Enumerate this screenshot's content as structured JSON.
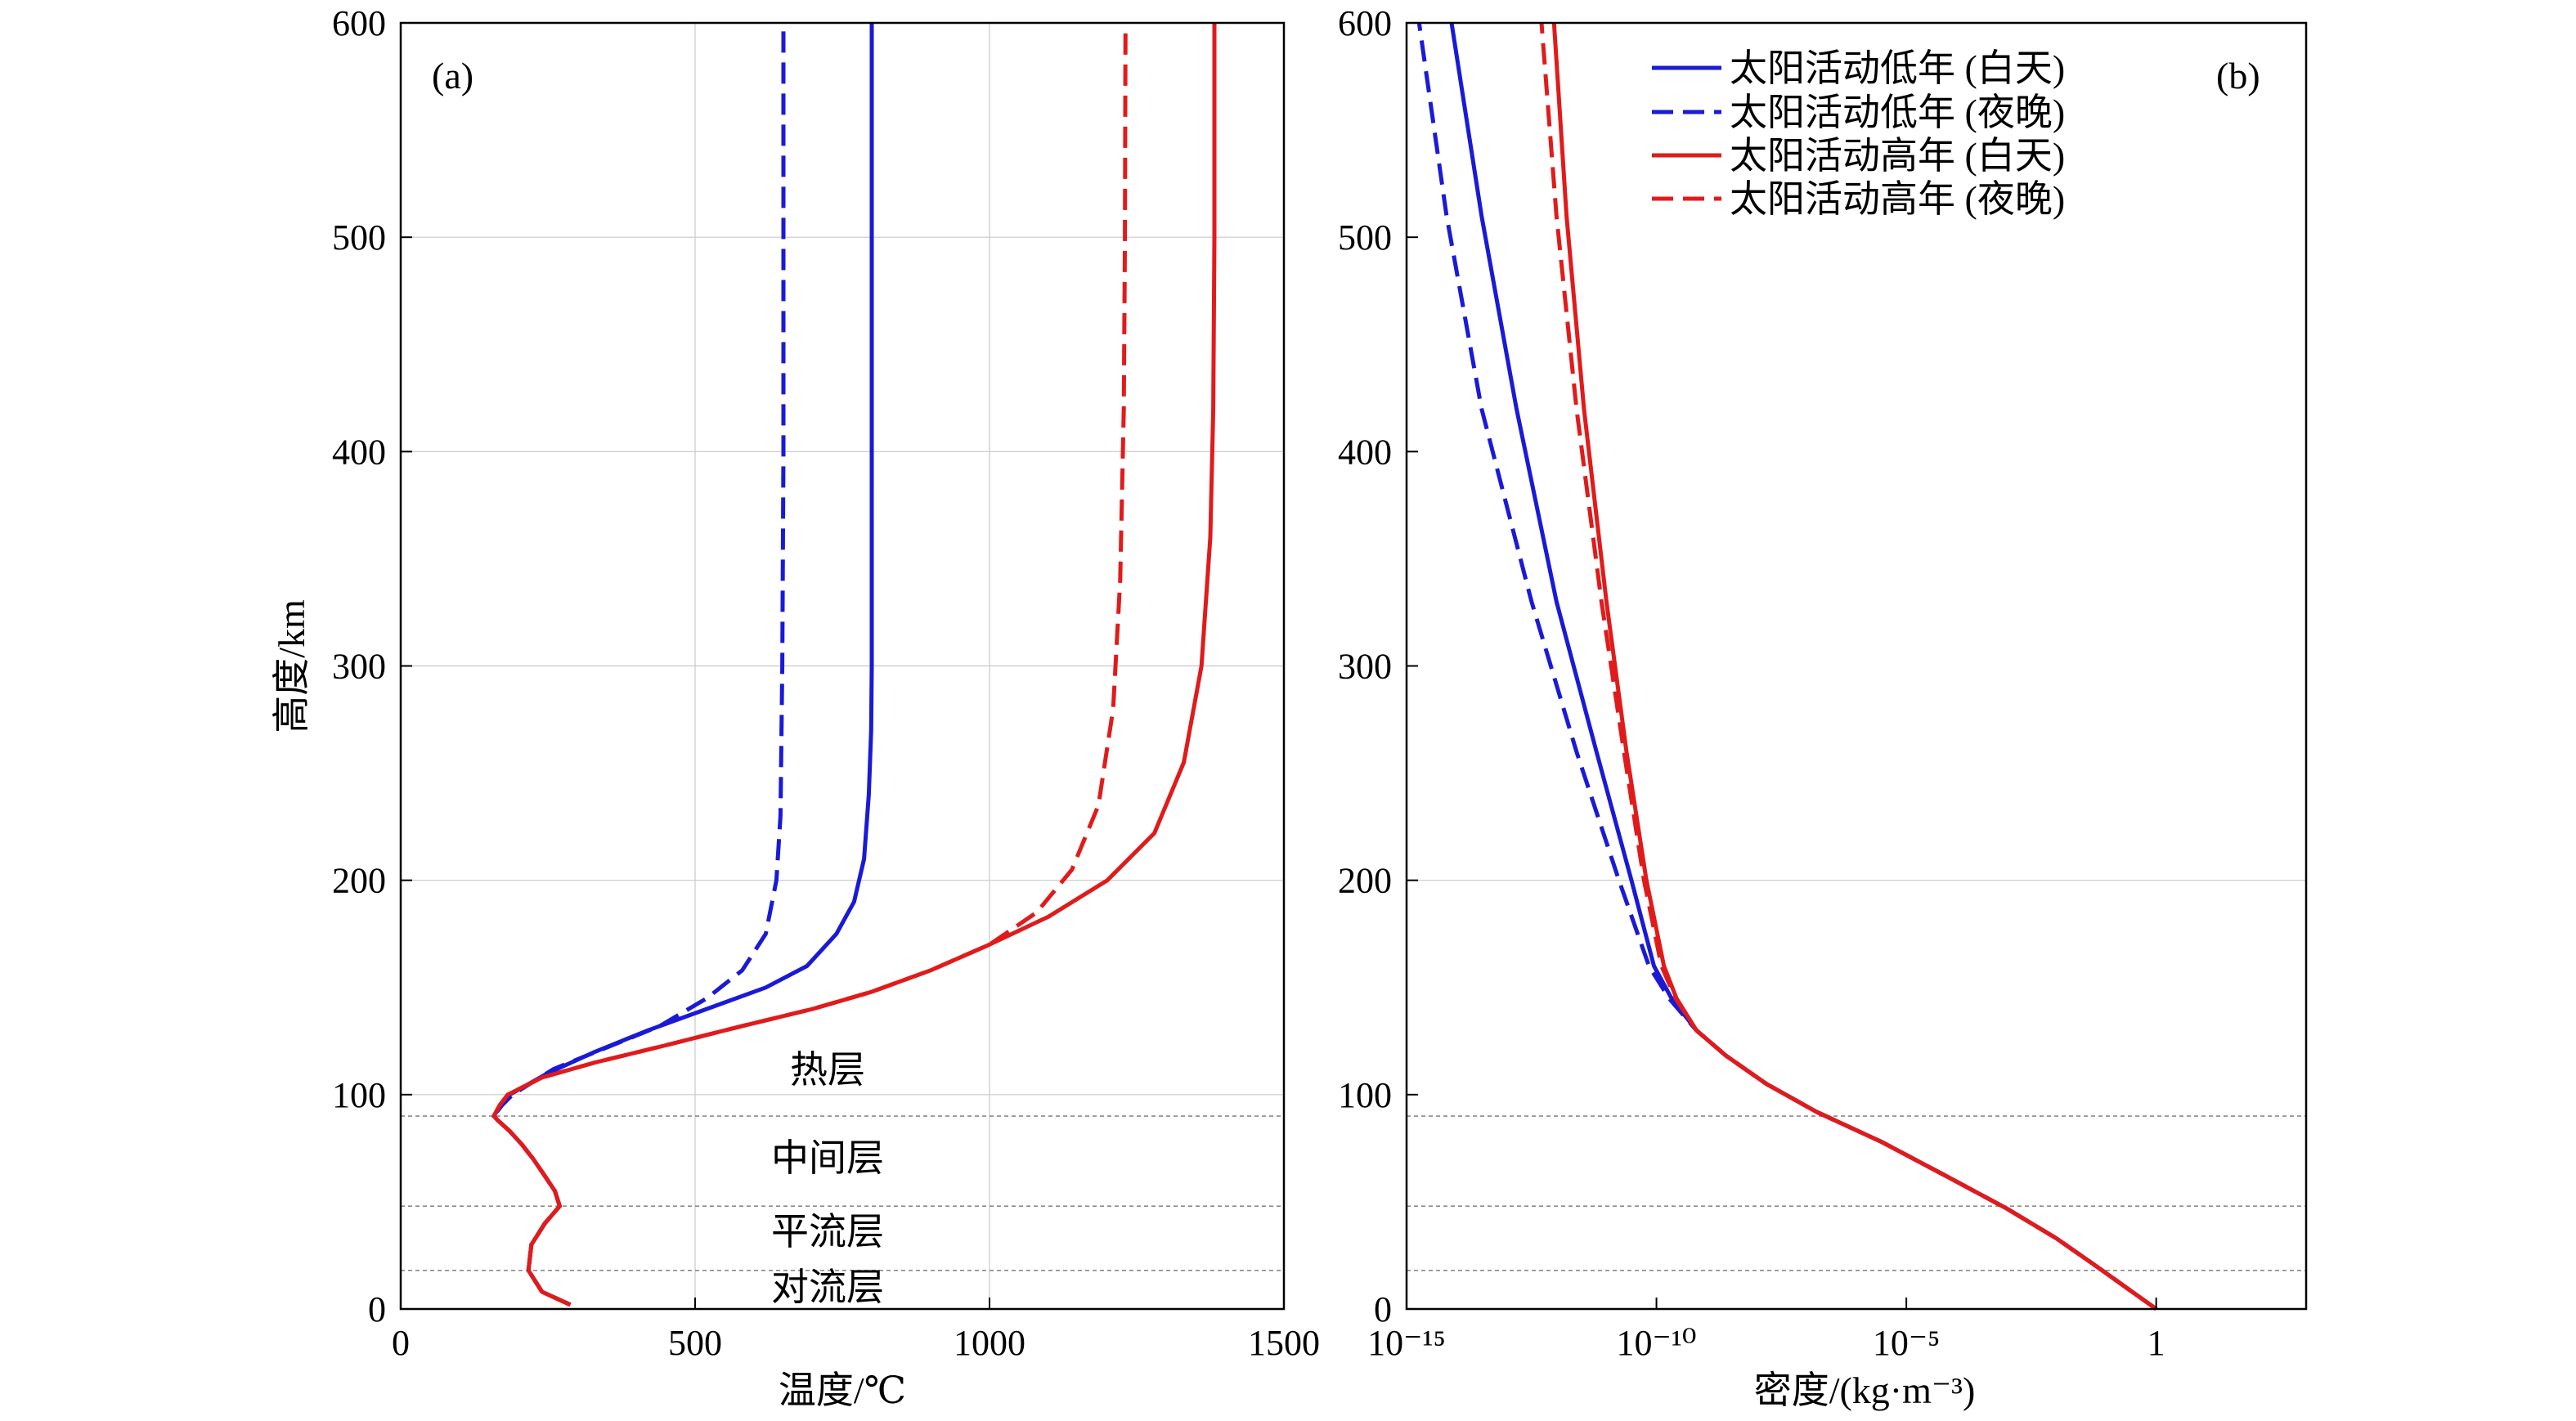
{
  "figure": {
    "layers": [
      "热层",
      "中间层",
      "平流层",
      "对流层"
    ],
    "legend": [
      "太阳活动低年 (白天)",
      "太阳活动低年 (夜晚)",
      "太阳活动高年 (白天)",
      "太阳活动高年 (夜晚)"
    ],
    "colors": {
      "low": "#1a1ad6",
      "high": "#e01b1b",
      "grid": "#c8c8c8",
      "layer_line": "#8a8a8a"
    }
  },
  "chart_data": [
    {
      "type": "line",
      "panel_label": "(a)",
      "xlabel": "温度/℃",
      "ylabel": "高度/km",
      "xlim": [
        0,
        1500
      ],
      "ylim": [
        0,
        600
      ],
      "x_ticks": [
        "0",
        "500",
        "1000",
        "1500"
      ],
      "y_ticks": [
        "0",
        "100",
        "200",
        "300",
        "400",
        "500",
        "600"
      ],
      "grid": true,
      "layer_boundaries_km": [
        18,
        48,
        90
      ],
      "series": [
        {
          "name": "太阳活动低年 (白天)",
          "style": "solid",
          "x": [
            288,
            240,
            217,
            222,
            245,
            270,
            262,
            245,
            225,
            205,
            185,
            165,
            158,
            170,
            185,
            250,
            330,
            420,
            520,
            620,
            690,
            740,
            770,
            787,
            795,
            799,
            800,
            800,
            800,
            800
          ],
          "y": [
            2,
            8,
            18,
            30,
            40,
            48,
            55,
            62,
            70,
            77,
            83,
            88,
            90,
            95,
            100,
            110,
            120,
            130,
            140,
            150,
            160,
            175,
            190,
            210,
            240,
            270,
            300,
            400,
            500,
            600
          ]
        },
        {
          "name": "太阳活动低年 (夜晚)",
          "style": "dashed",
          "x": [
            288,
            240,
            217,
            222,
            245,
            270,
            262,
            245,
            225,
            205,
            185,
            165,
            158,
            172,
            190,
            260,
            350,
            440,
            520,
            580,
            620,
            638,
            645,
            648,
            650,
            650
          ],
          "y": [
            2,
            8,
            18,
            30,
            40,
            48,
            55,
            62,
            70,
            77,
            83,
            88,
            90,
            95,
            100,
            112,
            122,
            132,
            145,
            158,
            175,
            200,
            230,
            300,
            400,
            600
          ]
        },
        {
          "name": "太阳活动高年 (白天)",
          "style": "solid",
          "x": [
            288,
            240,
            217,
            222,
            245,
            270,
            262,
            245,
            225,
            205,
            185,
            165,
            158,
            168,
            182,
            240,
            330,
            450,
            580,
            700,
            800,
            900,
            1000,
            1100,
            1200,
            1280,
            1330,
            1360,
            1375,
            1380,
            1382,
            1382
          ],
          "y": [
            2,
            8,
            18,
            30,
            40,
            48,
            55,
            62,
            70,
            77,
            83,
            88,
            90,
            95,
            100,
            108,
            115,
            123,
            132,
            140,
            148,
            158,
            170,
            183,
            200,
            222,
            255,
            300,
            360,
            420,
            500,
            600
          ]
        },
        {
          "name": "太阳活动高年 (夜晚)",
          "style": "dashed",
          "x": [
            288,
            240,
            217,
            222,
            245,
            270,
            262,
            245,
            225,
            205,
            185,
            165,
            158,
            168,
            182,
            240,
            330,
            450,
            580,
            700,
            800,
            900,
            1000,
            1080,
            1140,
            1185,
            1210,
            1222,
            1228,
            1230,
            1231
          ],
          "y": [
            2,
            8,
            18,
            30,
            40,
            48,
            55,
            62,
            70,
            77,
            83,
            88,
            90,
            95,
            100,
            108,
            115,
            123,
            132,
            140,
            148,
            158,
            170,
            185,
            205,
            235,
            280,
            340,
            420,
            500,
            600
          ]
        }
      ]
    },
    {
      "type": "line",
      "panel_label": "(b)",
      "xlabel": "密度/(kg·m⁻³)",
      "ylabel": "",
      "xscale": "log",
      "xlim": [
        1e-15,
        1000.0
      ],
      "ylim": [
        0,
        600
      ],
      "x_ticks": [
        "10⁻¹⁵",
        "10⁻¹⁰",
        "10⁻⁵",
        "1"
      ],
      "y_ticks": [
        "0",
        "100",
        "200",
        "300",
        "400",
        "500",
        "600"
      ],
      "grid": true,
      "layer_boundaries_km": [
        18,
        48,
        90
      ],
      "series": [
        {
          "name": "太阳活动低年 (白天)",
          "style": "solid",
          "x_log10": [
            0.0,
            -0.6,
            -1.2,
            -2.0,
            -3.0,
            -4.2,
            -5.5,
            -6.8,
            -7.8,
            -8.6,
            -9.2,
            -9.7,
            -10.05,
            -10.5,
            -11.2,
            -12.0,
            -12.8,
            -13.5,
            -14.1
          ],
          "y": [
            0,
            10,
            20,
            33,
            47,
            62,
            78,
            92,
            105,
            118,
            130,
            145,
            160,
            200,
            260,
            330,
            420,
            510,
            600
          ]
        },
        {
          "name": "太阳活动低年 (夜晚)",
          "style": "dashed",
          "x_log10": [
            0.0,
            -0.6,
            -1.2,
            -2.0,
            -3.0,
            -4.2,
            -5.5,
            -6.8,
            -7.8,
            -8.6,
            -9.2,
            -9.75,
            -10.15,
            -10.75,
            -11.6,
            -12.5,
            -13.5,
            -14.2,
            -14.75
          ],
          "y": [
            0,
            10,
            20,
            33,
            47,
            62,
            78,
            92,
            105,
            118,
            130,
            145,
            160,
            200,
            260,
            330,
            420,
            510,
            600
          ]
        },
        {
          "name": "太阳活动高年 (白天)",
          "style": "solid",
          "x_log10": [
            0.0,
            -0.6,
            -1.2,
            -2.0,
            -3.0,
            -4.2,
            -5.5,
            -6.8,
            -7.8,
            -8.6,
            -9.2,
            -9.6,
            -9.85,
            -10.2,
            -10.6,
            -11.0,
            -11.45,
            -11.8,
            -12.05
          ],
          "y": [
            0,
            10,
            20,
            33,
            47,
            62,
            78,
            92,
            105,
            118,
            130,
            145,
            160,
            200,
            260,
            330,
            420,
            510,
            600
          ]
        },
        {
          "name": "太阳活动高年 (夜晚)",
          "style": "dashed",
          "x_log10": [
            0.0,
            -0.6,
            -1.2,
            -2.0,
            -3.0,
            -4.2,
            -5.5,
            -6.8,
            -7.8,
            -8.6,
            -9.2,
            -9.62,
            -9.9,
            -10.25,
            -10.65,
            -11.1,
            -11.6,
            -12.0,
            -12.3
          ],
          "y": [
            0,
            10,
            20,
            33,
            47,
            62,
            78,
            92,
            105,
            118,
            130,
            145,
            160,
            200,
            260,
            330,
            420,
            510,
            600
          ]
        }
      ]
    }
  ]
}
